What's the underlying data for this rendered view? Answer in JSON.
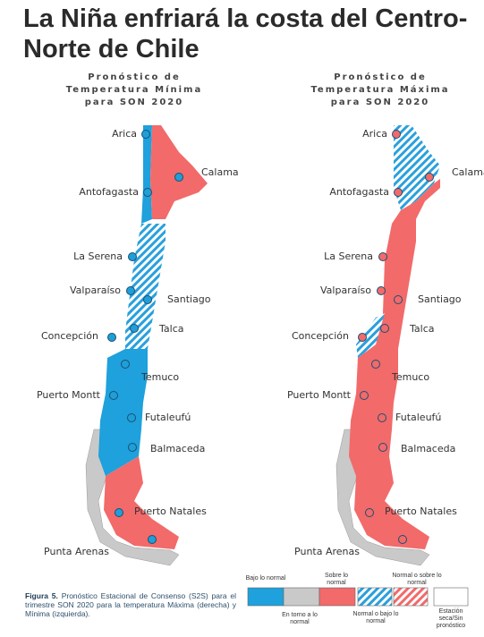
{
  "title": "La Niña enfriará la costa del Centro-Norte de Chile",
  "maps": [
    {
      "heading": [
        "Pronóstico de",
        "Temperatura Mínima",
        "para SON 2020"
      ],
      "cities": [
        "Arica",
        "Calama",
        "Antofagasta",
        "La Serena",
        "Valparaíso",
        "Santiago",
        "Talca",
        "Concepción",
        "Temuco",
        "Puerto Montt",
        "Futaleufú",
        "Balmaceda",
        "Puerto Natales",
        "Punta Arenas"
      ]
    },
    {
      "heading": [
        "Pronóstico de",
        "Temperatura Máxima",
        "para SON 2020"
      ],
      "cities": [
        "Arica",
        "Calama",
        "Antofagasta",
        "La Serena",
        "Valparaíso",
        "Santiago",
        "Talca",
        "Concepción",
        "Temuco",
        "Puerto Montt",
        "Futaleufú",
        "Balmaceda",
        "Puerto Natales",
        "Punta Arenas"
      ]
    }
  ],
  "legend": [
    "Bajo lo normal",
    "En torno a lo normal",
    "Sobre lo normal",
    "Normal o bajo lo normal",
    "Normal o sobre lo normal",
    "Estación seca/Sin pronóstico"
  ],
  "caption": {
    "label": "Figura 5.",
    "text": "Pronóstico Estacional de Consenso (S2S) para el trimestre SON 2020 para la temperatura Máxima (derecha) y Mínima (izquierda)."
  }
}
